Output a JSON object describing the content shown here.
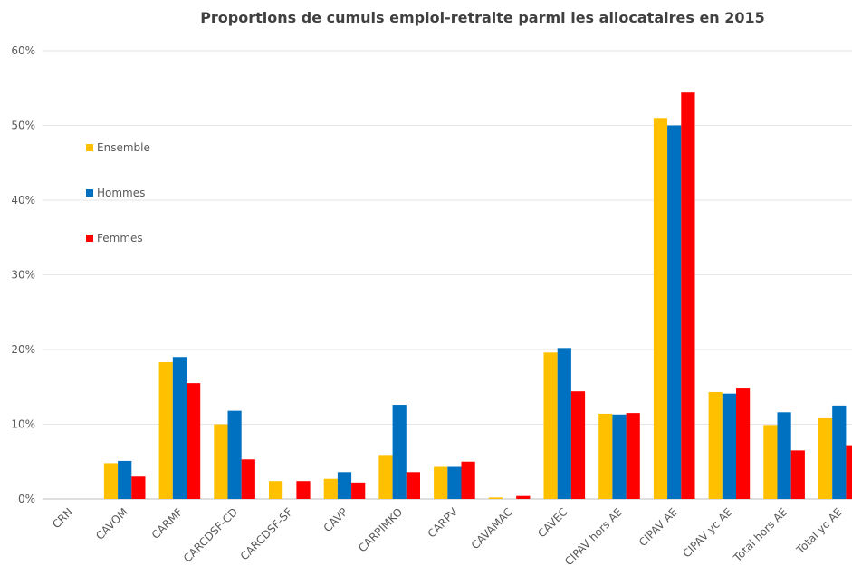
{
  "chart_data": {
    "type": "bar",
    "title": "Proportions de cumuls emploi-retraite parmi les allocataires en 2015",
    "categories": [
      "CRN",
      "CAVOM",
      "CARMF",
      "CARCDSF-CD",
      "CARCDSF-SF",
      "CAVP",
      "CARPIMKO",
      "CARPV",
      "CAVAMAC",
      "CAVEC",
      "CIPAV hors AE",
      "CIPAV AE",
      "CIPAV yc AE",
      "Total hors AE",
      "Total yc AE"
    ],
    "series": [
      {
        "name": "Ensemble",
        "color": "#FFC000",
        "values": [
          0,
          4.8,
          18.3,
          10.0,
          2.4,
          2.7,
          5.9,
          4.3,
          0.2,
          19.6,
          11.4,
          51.0,
          14.3,
          9.9,
          10.8
        ]
      },
      {
        "name": "Hommes",
        "color": "#0070C0",
        "values": [
          0,
          5.1,
          19.0,
          11.8,
          0,
          3.6,
          12.6,
          4.3,
          0,
          20.2,
          11.3,
          50.0,
          14.1,
          11.6,
          12.5
        ]
      },
      {
        "name": "Femmes",
        "color": "#FF0000",
        "values": [
          0,
          3.0,
          15.5,
          5.3,
          2.4,
          2.2,
          3.6,
          5.0,
          0.4,
          14.4,
          11.5,
          54.4,
          14.9,
          6.5,
          7.2
        ]
      }
    ],
    "y_ticks": [
      "0%",
      "10%",
      "20%",
      "30%",
      "40%",
      "50%",
      "60%"
    ],
    "ylim": [
      0,
      60
    ],
    "grid": true,
    "legend_position": "left, inside plot area"
  }
}
